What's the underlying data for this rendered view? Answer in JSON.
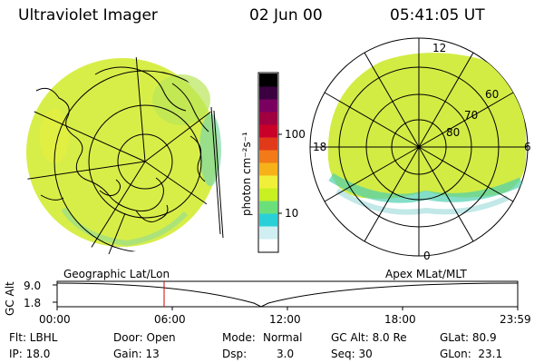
{
  "header": {
    "title": "Ultraviolet Imager",
    "date": "02 Jun 00",
    "time": "05:41:05 UT"
  },
  "colorbar": {
    "unit_label": "photon cm⁻²s⁻¹",
    "ticks": [
      "100",
      "10"
    ],
    "colors": [
      "#ffffff",
      "#cfeff2",
      "#2ad0d8",
      "#6be07a",
      "#c8f022",
      "#f0f03a",
      "#f7b21a",
      "#f27a18",
      "#e03a1a",
      "#c8002a",
      "#a00040",
      "#7a0060",
      "#3a0040",
      "#000000"
    ]
  },
  "left_panel": {
    "caption": "Geographic Lat/Lon",
    "color_fill": "#d8ee48"
  },
  "right_panel": {
    "caption": "Apex MLat/MLT",
    "lat_labels": [
      "60",
      "70",
      "80"
    ],
    "mlt_labels": {
      "top": "12",
      "left": "18",
      "right": "6",
      "bottom": "0"
    },
    "color_fill": "#d2ec44"
  },
  "altitude_plot": {
    "ylabel": "GC Alt",
    "ytick_top": "9.0",
    "ytick_bottom": "1.8",
    "xticks": [
      "00:00",
      "06:00",
      "12:00",
      "18:00",
      "23:59"
    ],
    "marker_color": "#d00000"
  },
  "info": {
    "flt": "Flt: LBHL",
    "ip": "IP: 18.0",
    "door": "Door: Open",
    "gain": "Gain: 13",
    "mode_label": "Mode:",
    "mode_value": "Normal",
    "dsp_label": "Dsp:",
    "dsp_value": "3.0",
    "gcalt": "GC Alt: 8.0 Re",
    "seq": "Seq: 30",
    "glat": "GLat: 80.9",
    "glon": "GLon:  23.1"
  }
}
